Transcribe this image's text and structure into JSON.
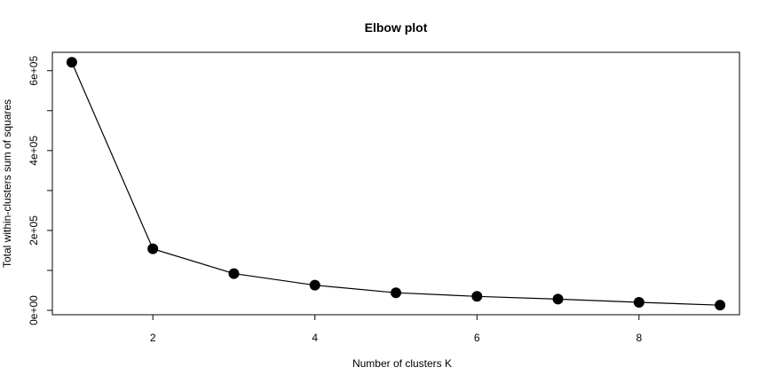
{
  "chart_data": {
    "type": "line",
    "title": "Elbow plot",
    "xlabel": "Number of clusters K",
    "ylabel": "Total within-clusters sum of squares",
    "x": [
      1,
      2,
      3,
      4,
      5,
      6,
      7,
      8,
      9
    ],
    "y": [
      621000,
      154000,
      92000,
      63000,
      44000,
      35000,
      28000,
      20000,
      13000
    ],
    "xlim": [
      0.76,
      9.24
    ],
    "ylim": [
      -11000,
      646000
    ],
    "x_ticks": [
      2,
      4,
      6,
      8
    ],
    "x_tick_labels": [
      "2",
      "4",
      "6",
      "8"
    ],
    "y_ticks": [
      0,
      100000,
      200000,
      300000,
      400000,
      500000,
      600000
    ],
    "y_tick_labels": [
      "0e+00",
      "",
      "2e+05",
      "",
      "4e+05",
      "",
      "6e+05"
    ],
    "markers": true,
    "grid": false,
    "line_color": "#000000",
    "marker_color": "#000000"
  }
}
